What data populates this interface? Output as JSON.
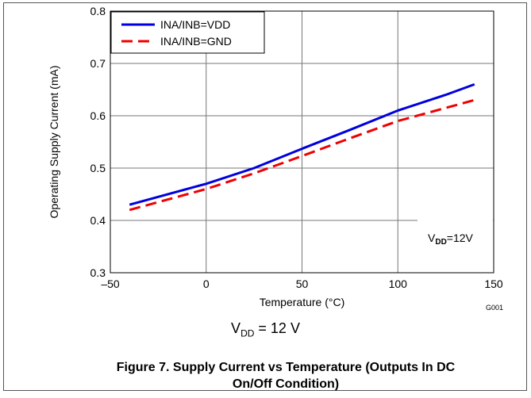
{
  "chart_data": {
    "type": "line",
    "xlabel": "Temperature (°C)",
    "ylabel": "Operating Supply Current (mA)",
    "xlim": [
      -50,
      150
    ],
    "ylim": [
      0.3,
      0.8
    ],
    "xticks": [
      -50,
      0,
      50,
      100,
      150
    ],
    "xtick_labels": [
      "–50",
      "0",
      "50",
      "100",
      "150"
    ],
    "yticks": [
      0.3,
      0.4,
      0.5,
      0.6,
      0.7,
      0.8
    ],
    "ytick_labels": [
      "0.3",
      "0.4",
      "0.5",
      "0.6",
      "0.7",
      "0.8"
    ],
    "grid": true,
    "legend_position": "top-left",
    "series": [
      {
        "name": "INA/INB=VDD",
        "color": "#0000dd",
        "style": "solid",
        "x": [
          -40,
          0,
          25,
          50,
          75,
          100,
          125,
          140
        ],
        "y": [
          0.43,
          0.47,
          0.5,
          0.537,
          0.573,
          0.61,
          0.64,
          0.66
        ]
      },
      {
        "name": "INA/INB=GND",
        "color": "#ee0000",
        "style": "dashed",
        "x": [
          -40,
          0,
          25,
          50,
          75,
          100,
          125,
          140
        ],
        "y": [
          0.42,
          0.46,
          0.49,
          0.523,
          0.557,
          0.59,
          0.615,
          0.63
        ]
      }
    ],
    "annotation": {
      "main": "V",
      "sub": "DD",
      "rest": "=12V",
      "position": "bottom-right"
    },
    "code": "G001"
  },
  "vdd_caption": {
    "main": "V",
    "sub": "DD",
    "rest": " = 12 V"
  },
  "figure_caption_line1": "Figure 7. Supply Current vs Temperature (Outputs In DC",
  "figure_caption_line2": "On/Off Condition)"
}
